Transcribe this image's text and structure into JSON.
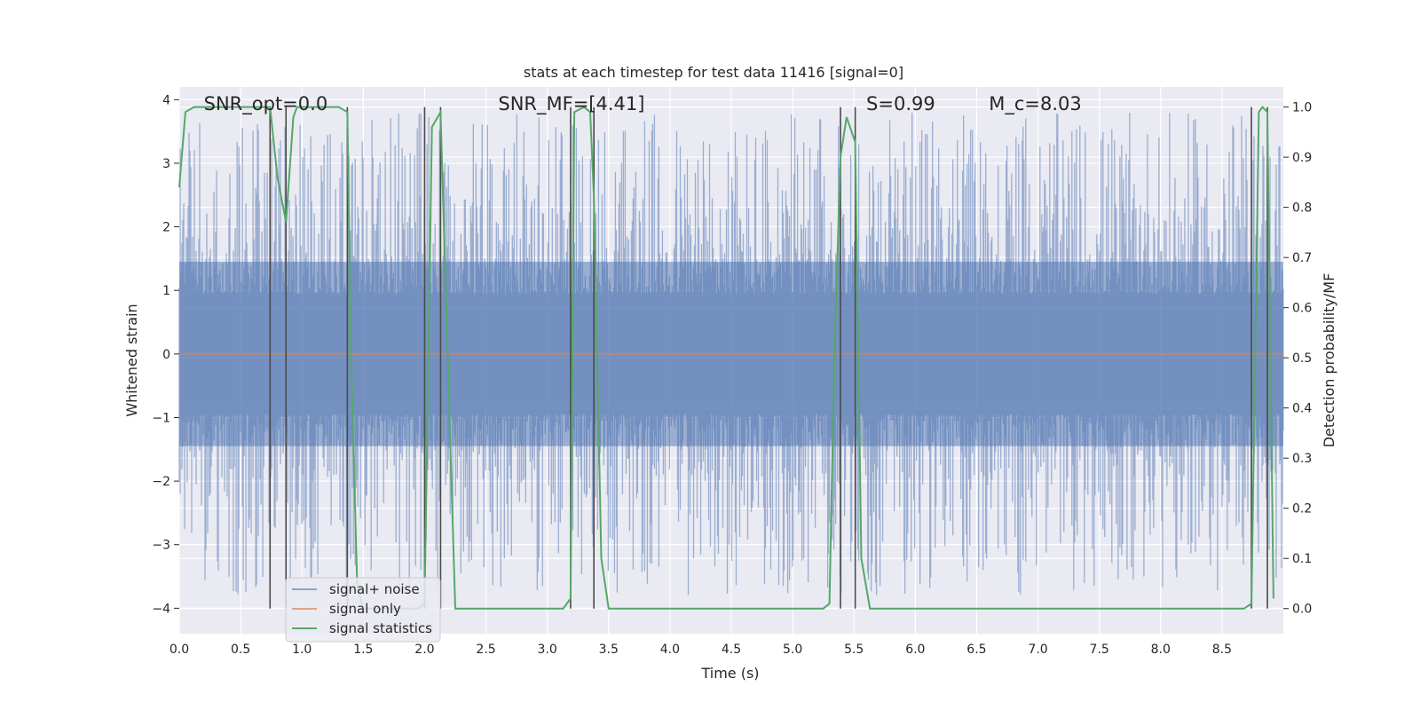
{
  "chart_data": {
    "type": "line",
    "title": "stats at each timestep for test data 11416 [signal=0]",
    "xlabel": "Time (s)",
    "ylabel": "Whitened strain",
    "y2label": "Detection probability/MF",
    "xlim": [
      0,
      9.0
    ],
    "ylim": [
      -4.4,
      4.2
    ],
    "y2lim": [
      -0.05,
      1.04
    ],
    "x_ticks": [
      "0.0",
      "0.5",
      "1.0",
      "1.5",
      "2.0",
      "2.5",
      "3.0",
      "3.5",
      "4.0",
      "4.5",
      "5.0",
      "5.5",
      "6.0",
      "6.5",
      "7.0",
      "7.5",
      "8.0",
      "8.5"
    ],
    "y_ticks": [
      "4",
      "3",
      "2",
      "1",
      "0",
      "−1",
      "−2",
      "−3",
      "−4"
    ],
    "y2_ticks": [
      "1.0",
      "0.9",
      "0.8",
      "0.7",
      "0.6",
      "0.5",
      "0.4",
      "0.3",
      "0.2",
      "0.1",
      "0.0"
    ],
    "grid": true,
    "legend_position": "lower-left",
    "annotations": [
      {
        "x": 0.2,
        "y": 3.95,
        "text": "SNR_opt=0.0"
      },
      {
        "x": 2.6,
        "y": 3.95,
        "text": "SNR_MF=[4.41]"
      },
      {
        "x": 5.6,
        "y": 3.95,
        "text": "S=0.99"
      },
      {
        "x": 6.6,
        "y": 3.95,
        "text": "M_c=8.03"
      }
    ],
    "vlines": [
      0.74,
      0.87,
      1.37,
      2.0,
      2.13,
      3.19,
      3.38,
      5.39,
      5.51,
      8.74,
      8.87
    ],
    "series": [
      {
        "name": "signal+ noise",
        "color": "#4c72b0",
        "opacity": 0.5,
        "kind": "noise",
        "amplitude_envelope": 3.8
      },
      {
        "name": "signal only",
        "color": "#dd8452",
        "values_constant": 0.0
      },
      {
        "name": "signal statistics",
        "color": "#55a868",
        "axis": "right",
        "x": [
          0.0,
          0.05,
          0.12,
          0.5,
          0.7,
          0.74,
          0.8,
          0.87,
          0.93,
          0.96,
          1.3,
          1.37,
          1.4,
          1.45,
          1.5,
          1.95,
          2.0,
          2.06,
          2.13,
          2.2,
          2.25,
          2.5,
          3.13,
          3.19,
          3.22,
          3.3,
          3.35,
          3.38,
          3.44,
          3.5,
          5.25,
          5.3,
          5.34,
          5.39,
          5.44,
          5.51,
          5.56,
          5.63,
          8.68,
          8.74,
          8.8,
          8.83,
          8.87,
          8.92
        ],
        "y": [
          0.84,
          0.99,
          1.0,
          1.0,
          1.0,
          1.0,
          0.86,
          0.77,
          0.98,
          1.0,
          1.0,
          0.99,
          0.5,
          0.05,
          0.0,
          0.0,
          0.01,
          0.96,
          0.99,
          0.4,
          0.0,
          0.0,
          0.0,
          0.02,
          0.99,
          1.0,
          0.99,
          0.82,
          0.1,
          0.0,
          0.0,
          0.01,
          0.5,
          0.9,
          0.98,
          0.93,
          0.1,
          0.0,
          0.0,
          0.01,
          0.99,
          1.0,
          0.99,
          0.02
        ]
      }
    ]
  }
}
